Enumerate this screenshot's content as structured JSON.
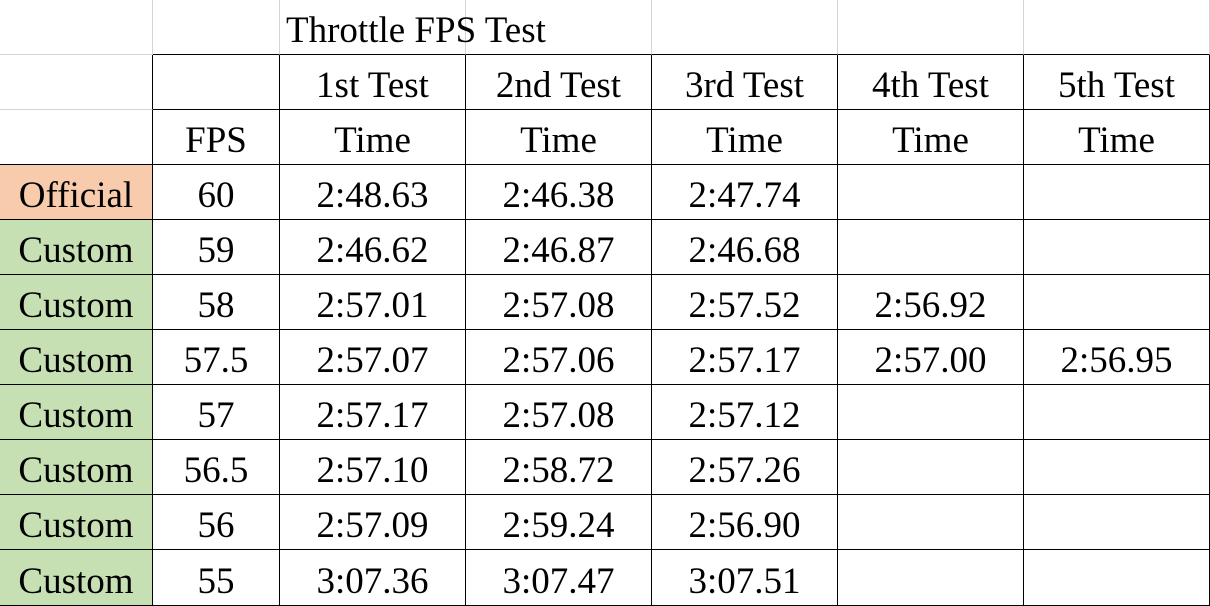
{
  "title": "Throttle FPS Test",
  "table": {
    "test_headers": [
      "1st Test",
      "2nd Test",
      "3rd Test",
      "4th Test",
      "5th Test"
    ],
    "fps_header": "FPS",
    "time_headers": [
      "Time",
      "Time",
      "Time",
      "Time",
      "Time"
    ],
    "rows": [
      {
        "label": "Official",
        "color": "#f8cbad",
        "fps": 60,
        "times": [
          "2:48.63",
          "2:46.38",
          "2:47.74"
        ]
      },
      {
        "label": "Custom",
        "color": "#c6e0b4",
        "fps": 59,
        "times": [
          "2:46.62",
          "2:46.87",
          "2:46.68"
        ]
      },
      {
        "label": "Custom",
        "color": "#c6e0b4",
        "fps": 58,
        "times": [
          "2:57.01",
          "2:57.08",
          "2:57.52",
          "2:56.92"
        ]
      },
      {
        "label": "Custom",
        "color": "#c6e0b4",
        "fps": 57.5,
        "times": [
          "2:57.07",
          "2:57.06",
          "2:57.17",
          "2:57.00",
          "2:56.95"
        ]
      },
      {
        "label": "Custom",
        "color": "#c6e0b4",
        "fps": 57,
        "times": [
          "2:57.17",
          "2:57.08",
          "2:57.12"
        ]
      },
      {
        "label": "Custom",
        "color": "#c6e0b4",
        "fps": 56.5,
        "times": [
          "2:57.10",
          "2:58.72",
          "2:57.26"
        ]
      },
      {
        "label": "Custom",
        "color": "#c6e0b4",
        "fps": 56,
        "times": [
          "2:57.09",
          "2:59.24",
          "2:56.90"
        ]
      },
      {
        "label": "Custom",
        "color": "#c6e0b4",
        "fps": 55,
        "times": [
          "3:07.36",
          "3:07.47",
          "3:07.51"
        ]
      }
    ]
  }
}
